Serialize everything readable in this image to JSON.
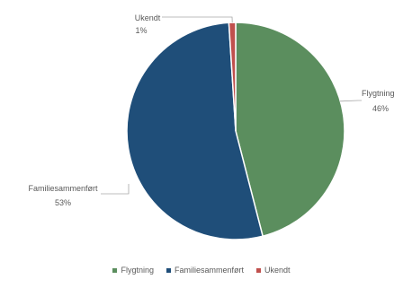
{
  "chart_data": {
    "type": "pie",
    "categories": [
      "Flygtning",
      "Familiesammenført",
      "Ukendt"
    ],
    "values": [
      46,
      53,
      1
    ],
    "value_labels": [
      "46%",
      "53%",
      "1%"
    ],
    "colors": [
      "#5B8E5E",
      "#1F4E79",
      "#C0504D"
    ],
    "legend_position": "bottom",
    "title": ""
  }
}
